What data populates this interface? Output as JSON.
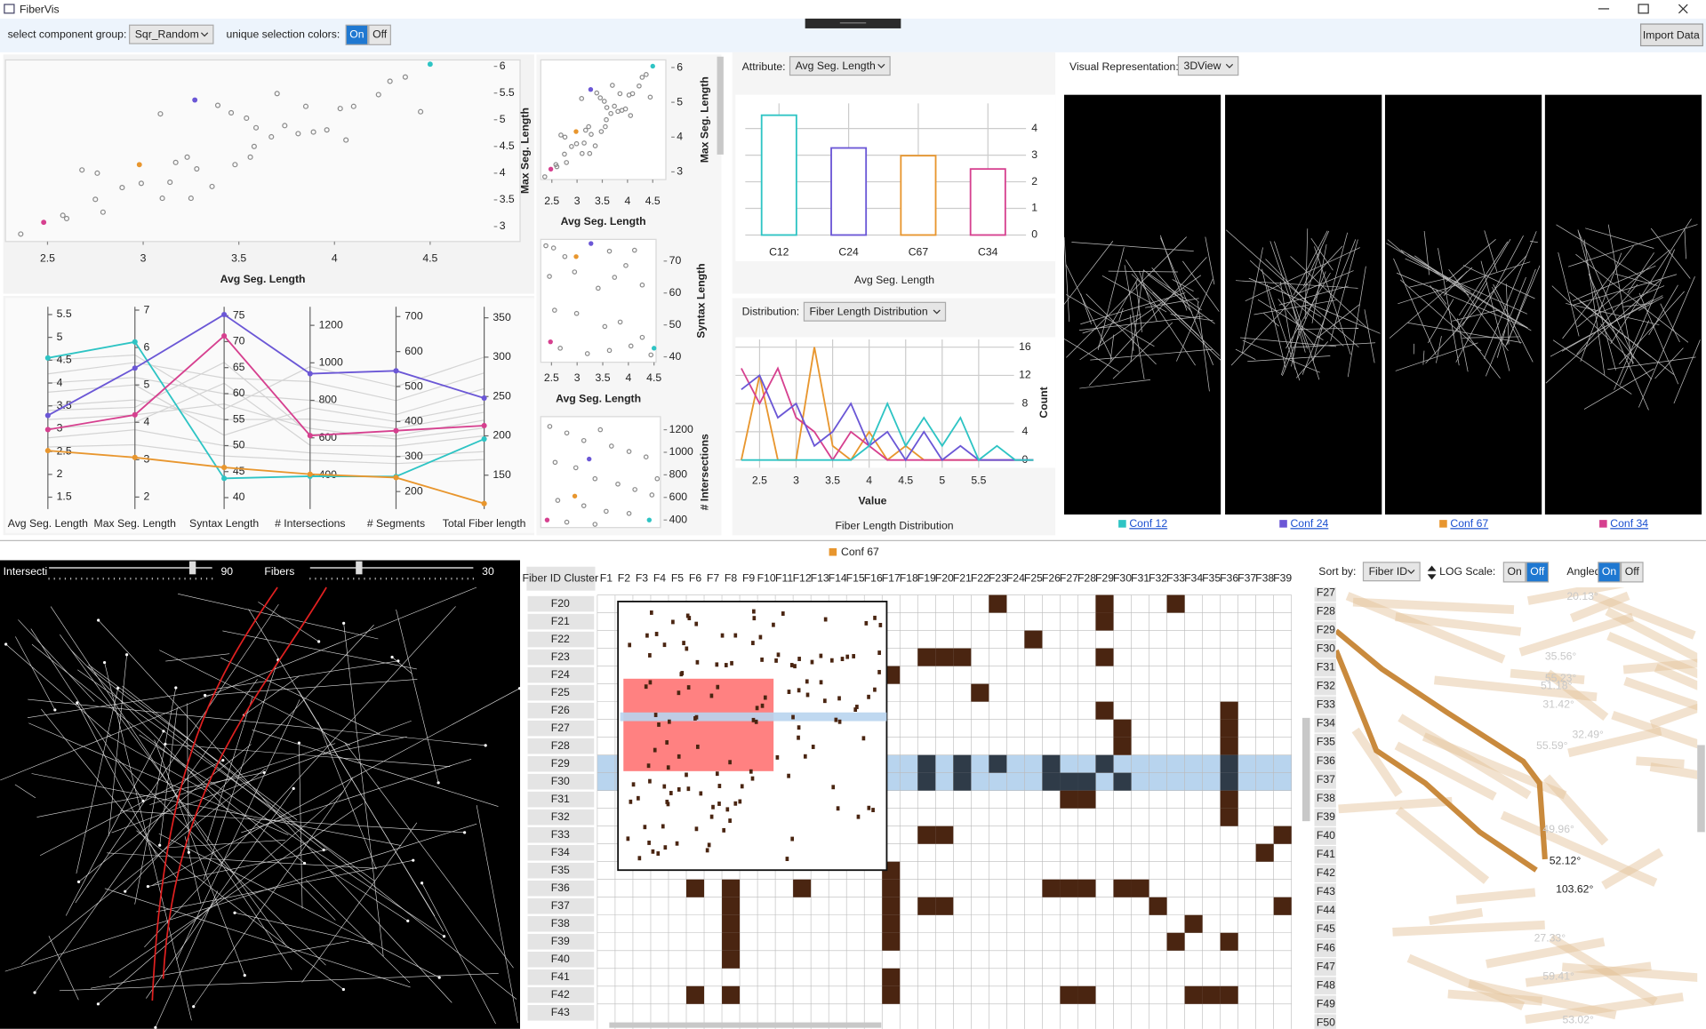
{
  "window": {
    "title": "FiberVis",
    "import": "Import Data"
  },
  "toolbar": {
    "group_label": "select component group:",
    "group": "Sqr_Random",
    "colors_label": "unique selection colors:",
    "on": "On",
    "off": "Off"
  },
  "chart_data": [
    {
      "type": "scatter",
      "x_label": "Avg Seg. Length",
      "y_label": "Max Seg. Length",
      "xlim": [
        2.28,
        4.97
      ],
      "ylim": [
        2.72,
        6.12
      ],
      "xticks": [
        2.5,
        3,
        3.5,
        4,
        4.5
      ],
      "yticks": [
        3,
        3.5,
        4,
        4.5,
        5,
        5.5,
        6
      ],
      "color": "#8a8a8a",
      "x": [
        2.36,
        2.58,
        2.6,
        2.68,
        2.76,
        2.75,
        2.79,
        2.89,
        2.99,
        3.1,
        3.14,
        3.17,
        3.23,
        3.25,
        3.28,
        3.36,
        3.09,
        3.39,
        3.46,
        3.54,
        3.59,
        3.58,
        3.67,
        3.48,
        3.56,
        3.7,
        3.74,
        3.81,
        3.85,
        3.89,
        3.96,
        4.03,
        4.06,
        4.1,
        4.23,
        4.29,
        4.37,
        4.45
      ],
      "y": [
        2.86,
        3.21,
        3.15,
        4.06,
        4.0,
        3.51,
        3.27,
        3.73,
        3.81,
        3.53,
        3.83,
        4.2,
        4.3,
        3.53,
        4.08,
        3.75,
        5.11,
        5.27,
        5.13,
        5.03,
        4.85,
        4.5,
        4.68,
        4.16,
        4.3,
        5.49,
        4.89,
        4.74,
        5.25,
        4.77,
        4.81,
        5.21,
        4.62,
        5.25,
        5.47,
        5.72,
        5.8,
        5.15
      ],
      "selected": {
        "x": [
          4.5,
          3.27,
          2.98,
          2.48
        ],
        "y": [
          6.04,
          5.37,
          4.16,
          3.08
        ],
        "colors": [
          "#2ec4c4",
          "#6b57d6",
          "#e8962e",
          "#d6408f"
        ]
      }
    },
    {
      "type": "scatter",
      "x_label": "Avg Seg. Length",
      "y_label": "Max Seg. Length",
      "xlim": [
        2.28,
        4.76
      ],
      "ylim": [
        2.78,
        6.22
      ],
      "xticks": [
        2.5,
        3,
        3.5,
        4,
        4.5
      ],
      "yticks": [
        3,
        4,
        5,
        6
      ]
    },
    {
      "type": "scatter",
      "x_label": "Avg Seg. Length",
      "y_label": "Syntax Length",
      "xlim": [
        2.29,
        4.54
      ],
      "ylim": [
        38.3,
        76.8
      ],
      "xticks": [
        2.5,
        3,
        3.5,
        4,
        4.5
      ],
      "yticks": [
        40,
        50,
        60,
        70
      ],
      "color": "#8a8a8a",
      "x": [
        2.39,
        2.54,
        2.76,
        3.63,
        4.12,
        2.46,
        2.95,
        3.41,
        3.73,
        3.95,
        4.27,
        2.56,
        2.99,
        3.54,
        3.84,
        4.27,
        2.67,
        3.2,
        3.63,
        4.05,
        4.44
      ],
      "y": [
        74.8,
        74.1,
        71.4,
        73.1,
        73.4,
        65.2,
        66.6,
        61.5,
        64.9,
        68.6,
        62.5,
        54.6,
        53.6,
        49.5,
        50.9,
        46.1,
        42.7,
        41.0,
        42.0,
        43.4,
        40.6
      ],
      "selected": {
        "x": [
          4.5,
          3.27,
          2.98,
          2.48
        ],
        "y": [
          42.7,
          75.5,
          71.4,
          44.7
        ],
        "colors": [
          "#2ec4c4",
          "#6b57d6",
          "#e8962e",
          "#d6408f"
        ]
      }
    },
    {
      "type": "scatter",
      "y_label": "# Intersections",
      "xlim": [
        2.29,
        4.54
      ],
      "ylim": [
        333,
        1316
      ],
      "yticks": [
        400,
        600,
        800,
        1000,
        1200
      ],
      "color": "#8a8a8a",
      "x": [
        2.46,
        2.78,
        3.1,
        3.41,
        3.62,
        3.95,
        4.27,
        2.56,
        2.95,
        3.31,
        3.74,
        4.06,
        4.38,
        2.61,
        3.1,
        3.52,
        3.95,
        2.78,
        3.31,
        4.48
      ],
      "y": [
        1229,
        1171,
        1104,
        1200,
        1055,
        1007,
        959,
        911,
        863,
        766,
        718,
        670,
        622,
        574,
        526,
        477,
        458,
        381,
        362,
        766
      ],
      "selected": {
        "x": [
          4.33,
          3.2,
          2.93,
          2.41
        ],
        "y": [
          400,
          940,
          612,
          400
        ],
        "colors": [
          "#2ec4c4",
          "#6b57d6",
          "#e8962e",
          "#d6408f"
        ]
      }
    },
    {
      "type": "parallel",
      "axes": [
        {
          "name": "Avg Seg. Length",
          "ylim": [
            1.24,
            5.67
          ],
          "yticks": [
            1.5,
            2,
            2.5,
            3,
            3.5,
            4,
            4.5,
            5,
            5.5
          ]
        },
        {
          "name": "Max Seg. Length",
          "ylim": [
            1.68,
            7.09
          ],
          "yticks": [
            2,
            3,
            4,
            5,
            6,
            7
          ]
        },
        {
          "name": "Syntax Length",
          "ylim": [
            37.8,
            76.7
          ],
          "yticks": [
            40,
            45,
            50,
            55,
            60,
            65,
            70,
            75
          ]
        },
        {
          "name": "# Intersections",
          "ylim": [
            220,
            1299
          ],
          "yticks": [
            400,
            600,
            800,
            1000,
            1200
          ]
        },
        {
          "name": "# Segments",
          "ylim": [
            150,
            728
          ],
          "yticks": [
            200,
            300,
            400,
            500,
            600,
            700
          ]
        },
        {
          "name": "Total Fiber length",
          "ylim": [
            107,
            364
          ],
          "yticks": [
            150,
            200,
            250,
            300,
            350
          ]
        }
      ],
      "series": [
        {
          "color": "#2ec4c4",
          "values": [
            4.55,
            6.15,
            43.7,
            395,
            243,
            196
          ]
        },
        {
          "color": "#6b57d6",
          "values": [
            3.29,
            5.45,
            75.2,
            942,
            545,
            248
          ]
        },
        {
          "color": "#d6408f",
          "values": [
            2.98,
            4.2,
            71.1,
            612,
            374,
            213
          ]
        },
        {
          "color": "#e8962e",
          "values": [
            2.52,
            3.06,
            45.8,
            406,
            240,
            114
          ]
        }
      ],
      "background": {
        "color": "#d4d4d4",
        "rows": [
          [
            3.5,
            4.6,
            55,
            700,
            380,
            230
          ],
          [
            4.0,
            5.2,
            60,
            800,
            420,
            260
          ],
          [
            2.8,
            3.8,
            50,
            520,
            300,
            180
          ],
          [
            3.2,
            4.2,
            58,
            650,
            350,
            210
          ],
          [
            4.2,
            5.6,
            63,
            900,
            460,
            280
          ],
          [
            2.6,
            3.4,
            48,
            480,
            280,
            170
          ],
          [
            3.8,
            5.0,
            52,
            760,
            400,
            240
          ],
          [
            3.0,
            4.0,
            62,
            560,
            330,
            200
          ],
          [
            4.5,
            5.8,
            57,
            980,
            500,
            300
          ],
          [
            3.4,
            4.4,
            66,
            620,
            360,
            220
          ]
        ]
      }
    },
    {
      "type": "bar",
      "attribute_label": "Attribute:",
      "attribute": "Avg Seg. Length",
      "x_label": "Avg Seg. Length",
      "categories": [
        "C12",
        "C24",
        "C67",
        "C34"
      ],
      "values": [
        4.5,
        3.27,
        2.98,
        2.48
      ],
      "colors": [
        "#2ec4c4",
        "#6b57d6",
        "#e8962e",
        "#d6408f"
      ],
      "ylim": [
        0,
        5.27
      ],
      "yticks": [
        0,
        1,
        2,
        3,
        4
      ],
      "grid": true
    },
    {
      "type": "line",
      "distribution_label": "Distribution:",
      "distribution": "Fiber Length Distribution",
      "title": "Fiber Length Distribution",
      "x_label": "Value",
      "y_label": "Count",
      "xlim": [
        2.17,
        6.52
      ],
      "ylim": [
        -1.1,
        17.1
      ],
      "xticks": [
        2.5,
        3,
        3.5,
        4,
        4.5,
        5,
        5.5
      ],
      "yticks": [
        0,
        4,
        8,
        12,
        16
      ],
      "grid": true,
      "x": [
        2.25,
        2.5,
        2.75,
        3,
        3.25,
        3.5,
        3.75,
        4,
        4.25,
        4.5,
        4.75,
        5,
        5.25,
        5.5,
        5.75,
        6,
        6.25
      ],
      "series": [
        {
          "color": "#e8962e",
          "values": [
            0,
            12,
            0,
            0,
            16,
            2,
            0,
            4,
            0,
            2,
            0,
            0,
            0,
            0,
            0,
            0,
            0
          ]
        },
        {
          "color": "#d6408f",
          "values": [
            13,
            8,
            13,
            6,
            4,
            0,
            4,
            2,
            0,
            0,
            0,
            0,
            0,
            0,
            0,
            0,
            0
          ]
        },
        {
          "color": "#6b57d6",
          "values": [
            10,
            12,
            6,
            8,
            2,
            4,
            8,
            2,
            4,
            0,
            4,
            0,
            2,
            0,
            0,
            0,
            0
          ]
        },
        {
          "color": "#2ec4c4",
          "values": [
            0,
            0,
            0,
            0,
            0,
            0,
            0,
            2,
            8,
            2,
            6,
            2,
            6,
            0,
            2,
            0,
            0
          ]
        }
      ]
    }
  ],
  "views": {
    "label": "Visual Representation:",
    "mode": "3DView",
    "panels": [
      {
        "name": "Conf 12",
        "color": "#2ec4c4"
      },
      {
        "name": "Conf 24",
        "color": "#6b57d6"
      },
      {
        "name": "Conf 67",
        "color": "#e8962e"
      },
      {
        "name": "Conf 34",
        "color": "#d6408f"
      }
    ]
  },
  "slider": {
    "intersections_label": "Intersecti",
    "intersections": 90,
    "fibers_label": "Fibers",
    "fibers": 30
  },
  "matrix": {
    "legend": "Conf 67",
    "legend_color": "#e8962e",
    "header": "Fiber ID Cluster",
    "columns": [
      "F1",
      "F2",
      "F3",
      "F4",
      "F5",
      "F6",
      "F7",
      "F8",
      "F9",
      "F10",
      "F11",
      "F12",
      "F13",
      "F14",
      "F15",
      "F16",
      "F17",
      "F18",
      "F19",
      "F20",
      "F21",
      "F22",
      "F23",
      "F24",
      "F25",
      "F26",
      "F27",
      "F28",
      "F29",
      "F30",
      "F31",
      "F32",
      "F33",
      "F34",
      "F35",
      "F36",
      "F37",
      "F38",
      "F39"
    ],
    "rows": [
      "F20",
      "F21",
      "F22",
      "F23",
      "F24",
      "F25",
      "F26",
      "F27",
      "F28",
      "F29",
      "F30",
      "F31",
      "F32",
      "F33",
      "F34",
      "F35",
      "F36",
      "F37",
      "F38",
      "F39",
      "F40",
      "F41",
      "F42",
      "F43"
    ],
    "filled": [
      [
        22,
        28,
        32
      ],
      [
        28
      ],
      [
        24
      ],
      [
        18,
        19,
        20,
        28
      ],
      [
        16
      ],
      [
        21
      ],
      [
        28,
        35
      ],
      [
        29,
        35
      ],
      [
        29,
        35
      ],
      [
        18,
        20,
        22,
        25,
        28,
        35
      ],
      [
        18,
        20,
        25,
        26,
        27,
        29,
        35
      ],
      [
        26,
        27,
        35
      ],
      [
        35
      ],
      [
        18,
        19,
        38
      ],
      [
        37
      ],
      [
        16
      ],
      [
        5,
        7,
        11,
        16,
        25,
        26,
        27,
        29,
        30
      ],
      [
        7,
        16,
        18,
        19,
        31,
        38
      ],
      [
        7,
        16,
        33
      ],
      [
        7,
        16,
        32,
        35
      ],
      [
        7
      ],
      [
        16
      ],
      [
        5,
        7,
        16,
        26,
        27,
        33,
        34,
        35
      ],
      []
    ],
    "highlight_rows": [
      9,
      10
    ],
    "cell_color": "#4a2511",
    "highlight_cell_color": "#2f3b48",
    "highlight_color": "#b8d4ee"
  },
  "order_panel": {
    "sort_label": "Sort by:",
    "sort": "Fiber ID",
    "log_label": "LOG Scale:",
    "log_on": "On",
    "log_off": "Off",
    "angled_label": "Angled:",
    "angled_on": "On",
    "angled_off": "Off",
    "rows": [
      "F27",
      "F28",
      "F29",
      "F30",
      "F31",
      "F32",
      "F33",
      "F34",
      "F35",
      "F36",
      "F37",
      "F38",
      "F39",
      "F40",
      "F41",
      "F42",
      "F43",
      "F44",
      "F45",
      "F46",
      "F47",
      "F48",
      "F49",
      "F50"
    ],
    "angles": [
      "52.12°",
      "103.62°"
    ],
    "faded_angles": [
      "20.13°",
      "35.56°",
      "55.23°",
      "51.18°",
      "31.42°",
      "32.49°",
      "55.59°",
      "49.96°",
      "27.33°",
      "59.41°",
      "53.02°"
    ]
  }
}
